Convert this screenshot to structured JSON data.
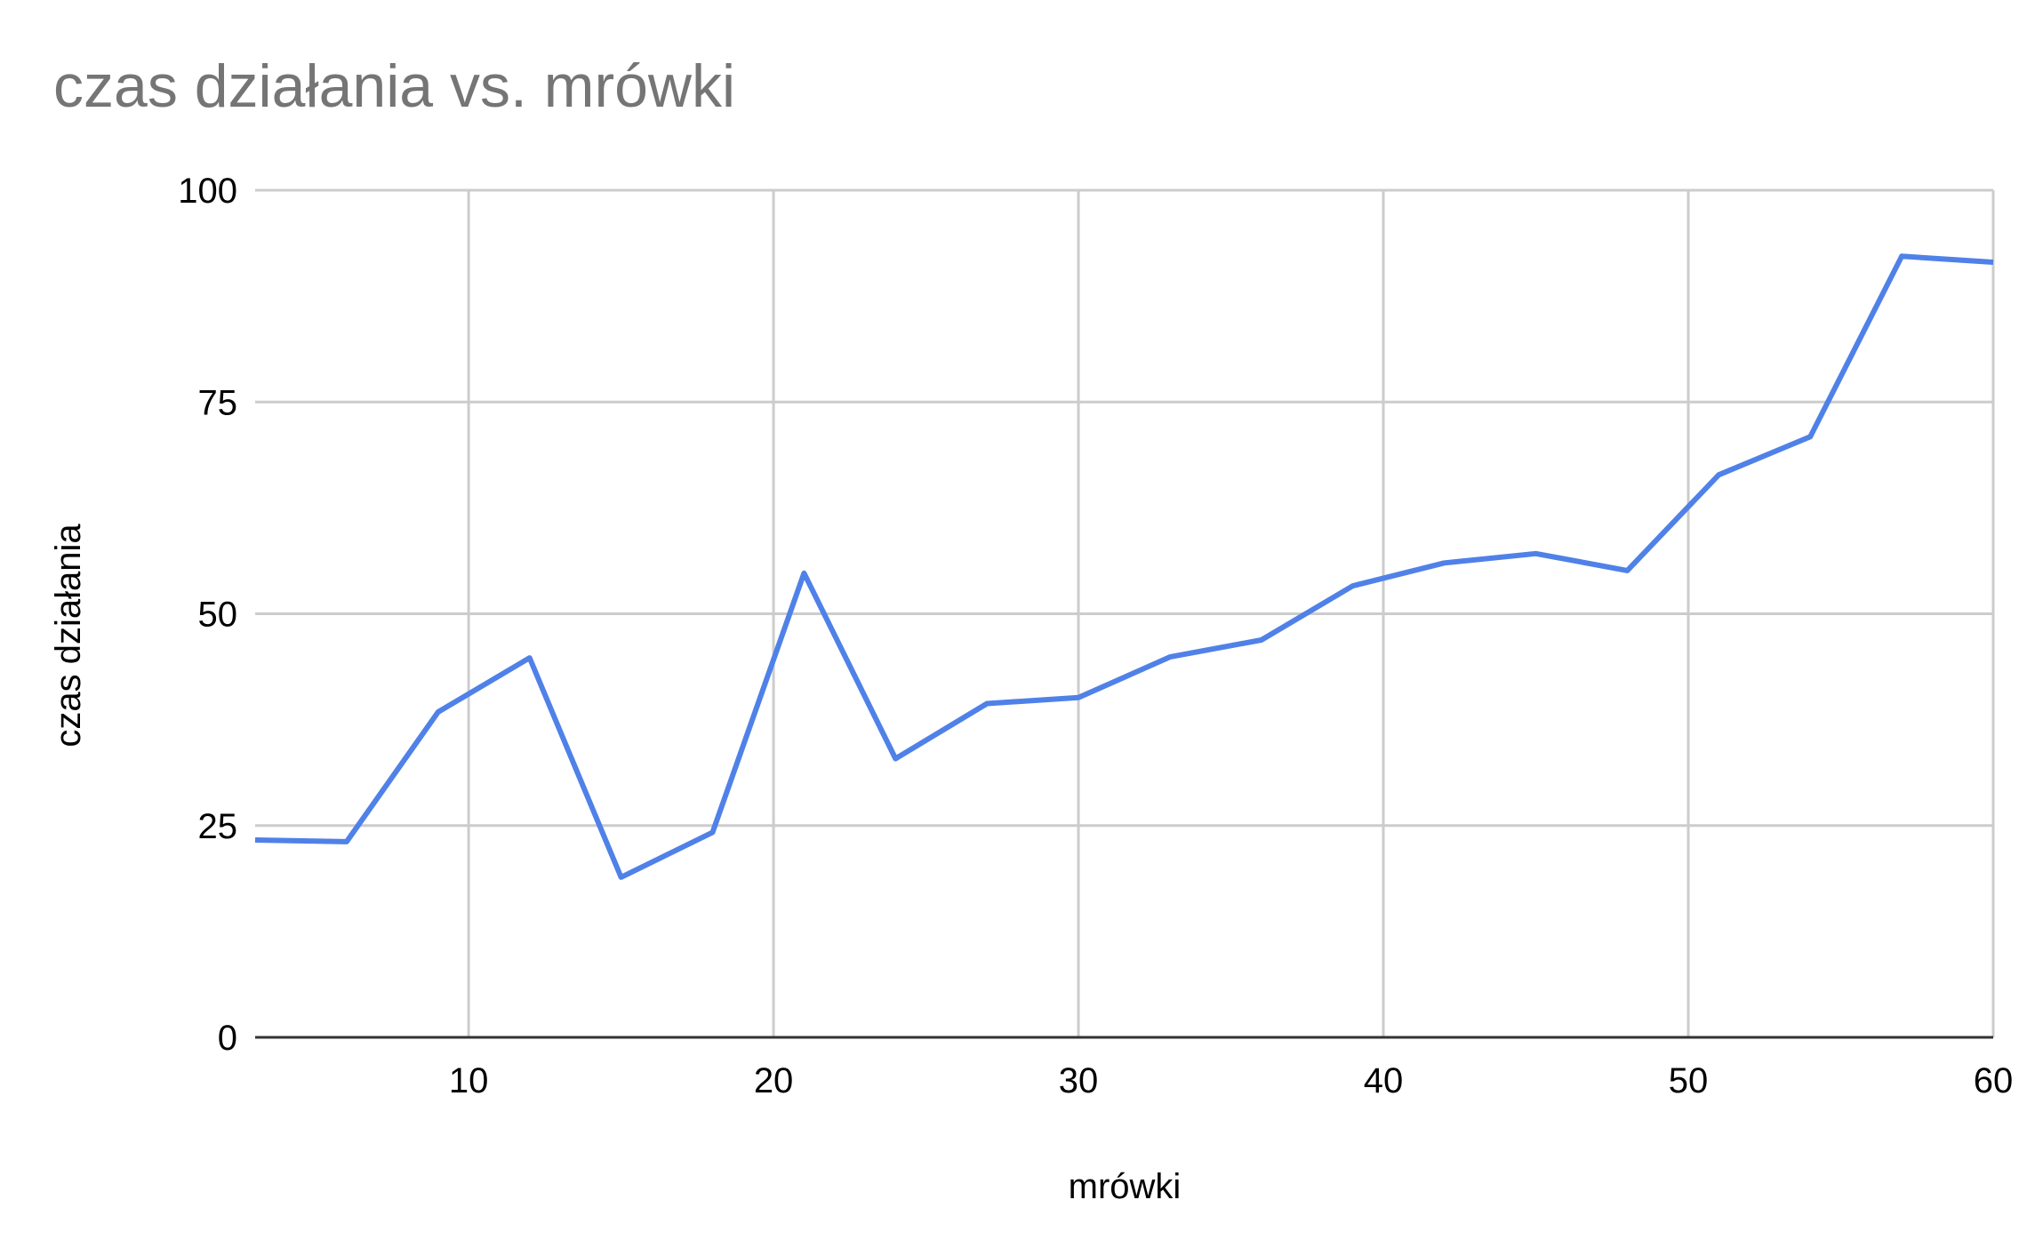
{
  "chart_data": {
    "type": "line",
    "title": "czas działania vs. mrówki",
    "xlabel": "mrówki",
    "ylabel": "czas działania",
    "xlim": [
      3,
      60
    ],
    "ylim": [
      0,
      100
    ],
    "xticks": [
      10,
      20,
      30,
      40,
      50,
      60
    ],
    "yticks": [
      0,
      25,
      50,
      75,
      100
    ],
    "grid": true,
    "legend": "none",
    "series": [
      {
        "color": "#4f81e8",
        "x": [
          3,
          6,
          9,
          12,
          15,
          18,
          21,
          24,
          27,
          30,
          33,
          36,
          39,
          42,
          45,
          48,
          51,
          54,
          57,
          60
        ],
        "y": [
          23.3,
          23.1,
          38.4,
          44.8,
          18.9,
          24.2,
          54.8,
          32.9,
          39.4,
          40.1,
          44.9,
          46.9,
          53.3,
          56.0,
          57.1,
          55.1,
          66.4,
          70.9,
          92.2,
          91.5
        ]
      }
    ]
  }
}
